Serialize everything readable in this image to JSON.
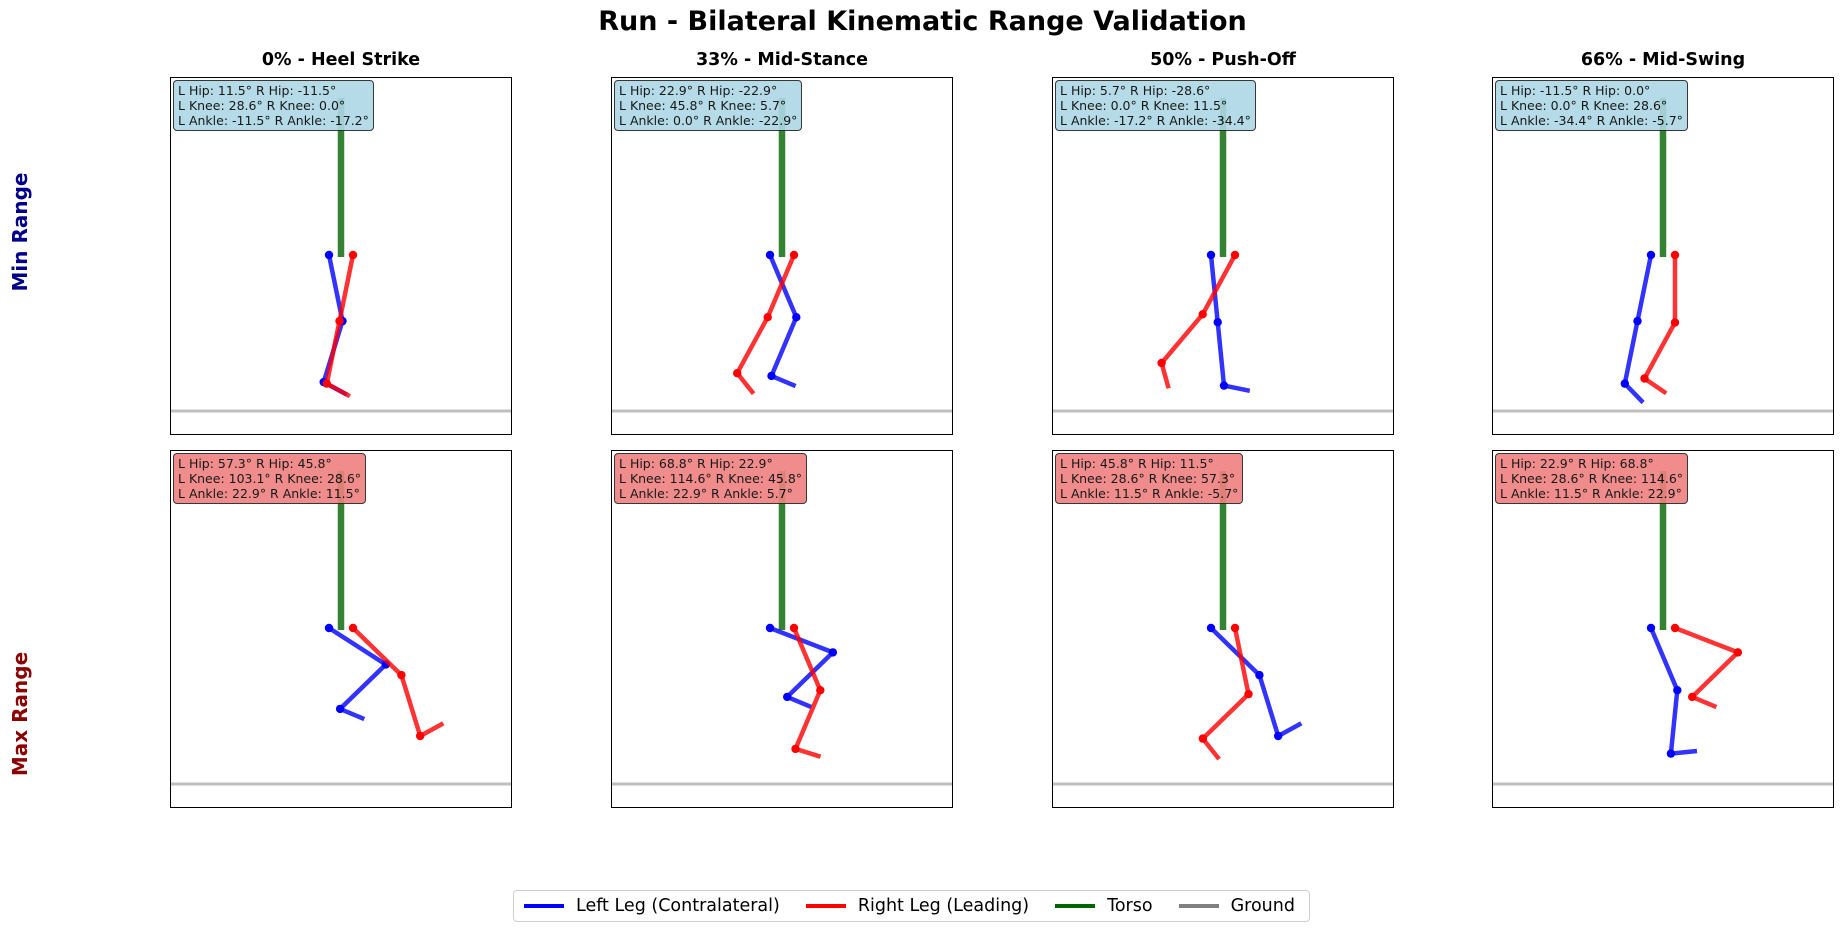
{
  "title": "Run - Bilateral Kinematic Range Validation",
  "row_labels": {
    "min": "Min Range",
    "max": "Max Range"
  },
  "columns": [
    {
      "title": "0% - Heel Strike"
    },
    {
      "title": "33% - Mid-Stance"
    },
    {
      "title": "50% - Push-Off"
    },
    {
      "title": "66% - Mid-Swing"
    }
  ],
  "panels": [
    {
      "row": "min",
      "lines": [
        "L Hip: 11.5°  R Hip: -11.5°",
        "L Knee: 28.6°  R Knee: 0.0°",
        "L Ankle: -11.5°  R Ankle: -17.2°"
      ]
    },
    {
      "row": "min",
      "lines": [
        "L Hip: 22.9°  R Hip: -22.9°",
        "L Knee: 45.8°  R Knee: 5.7°",
        "L Ankle: 0.0°  R Ankle: -22.9°"
      ]
    },
    {
      "row": "min",
      "lines": [
        "L Hip: 5.7°  R Hip: -28.6°",
        "L Knee: 0.0°  R Knee: 11.5°",
        "L Ankle: -17.2°  R Ankle: -34.4°"
      ]
    },
    {
      "row": "min",
      "lines": [
        "L Hip: -11.5°  R Hip: 0.0°",
        "L Knee: 0.0°  R Knee: 28.6°",
        "L Ankle: -34.4°  R Ankle: -5.7°"
      ]
    },
    {
      "row": "max",
      "lines": [
        "L Hip: 57.3°  R Hip: 45.8°",
        "L Knee: 103.1°  R Knee: 28.6°",
        "L Ankle: 22.9°  R Ankle: 11.5°"
      ]
    },
    {
      "row": "max",
      "lines": [
        "L Hip: 68.8°  R Hip: 22.9°",
        "L Knee: 114.6°  R Knee: 45.8°",
        "L Ankle: 22.9°  R Ankle: 5.7°"
      ]
    },
    {
      "row": "max",
      "lines": [
        "L Hip: 45.8°  R Hip: 11.5°",
        "L Knee: 28.6°  R Knee: 57.3°",
        "L Ankle: 11.5°  R Ankle: -5.7°"
      ]
    },
    {
      "row": "max",
      "lines": [
        "L Hip: 22.9°  R Hip: 68.8°",
        "L Knee: 28.6°  R Knee: 114.6°",
        "L Ankle: 11.5°  R Ankle: 22.9°"
      ]
    }
  ],
  "legend": [
    {
      "label": "Left Leg (Contralateral)",
      "color": "#0000ff"
    },
    {
      "label": "Right Leg (Leading)",
      "color": "#ff0000"
    },
    {
      "label": "Torso",
      "color": "#006400"
    },
    {
      "label": "Ground",
      "color": "#808080"
    }
  ],
  "chart_data": {
    "type": "stick-figure-grid",
    "colors": {
      "left_leg": "#0000ff",
      "right_leg": "#ff0000",
      "torso": "#006400",
      "ground": "#808080"
    },
    "angles_deg": [
      {
        "l_hip": 11.5,
        "r_hip": -11.5,
        "l_knee": 28.6,
        "r_knee": 0.0,
        "l_ankle": -11.5,
        "r_ankle": -17.2
      },
      {
        "l_hip": 22.9,
        "r_hip": -22.9,
        "l_knee": 45.8,
        "r_knee": 5.7,
        "l_ankle": 0.0,
        "r_ankle": -22.9
      },
      {
        "l_hip": 5.7,
        "r_hip": -28.6,
        "l_knee": 0.0,
        "r_knee": 11.5,
        "l_ankle": -17.2,
        "r_ankle": -34.4
      },
      {
        "l_hip": -11.5,
        "r_hip": 0.0,
        "l_knee": 0.0,
        "r_knee": 28.6,
        "l_ankle": -34.4,
        "r_ankle": -5.7
      },
      {
        "l_hip": 57.3,
        "r_hip": 45.8,
        "l_knee": 103.1,
        "r_knee": 28.6,
        "l_ankle": 22.9,
        "r_ankle": 11.5
      },
      {
        "l_hip": 68.8,
        "r_hip": 22.9,
        "l_knee": 114.6,
        "r_knee": 45.8,
        "l_ankle": 22.9,
        "r_ankle": 5.7
      },
      {
        "l_hip": 45.8,
        "r_hip": 11.5,
        "l_knee": 28.6,
        "r_knee": 57.3,
        "l_ankle": 11.5,
        "r_ankle": -5.7
      },
      {
        "l_hip": 22.9,
        "r_hip": 68.8,
        "l_knee": 28.6,
        "r_knee": 114.6,
        "l_ankle": 11.5,
        "r_ankle": 22.9
      }
    ]
  }
}
